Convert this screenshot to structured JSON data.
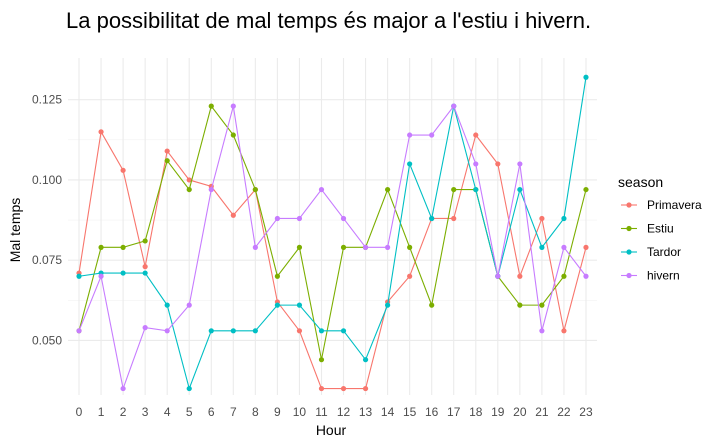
{
  "chart_data": {
    "type": "line",
    "title": "La possibilitat de mal temps és major a l'estiu i hivern.",
    "xlabel": "Hour",
    "ylabel": "Mal temps",
    "x": [
      0,
      1,
      2,
      3,
      4,
      5,
      6,
      7,
      8,
      9,
      10,
      11,
      12,
      13,
      14,
      15,
      16,
      17,
      18,
      19,
      20,
      21,
      22,
      23
    ],
    "xlim": [
      -0.5,
      23.5
    ],
    "ylim": [
      0.033,
      0.138
    ],
    "yticks": [
      0.05,
      0.075,
      0.1,
      0.125
    ],
    "ytick_labels": [
      "0.050",
      "0.075",
      "0.100",
      "0.125"
    ],
    "grid": true,
    "legend": {
      "title": "season",
      "placement": "right"
    },
    "series": [
      {
        "name": "Primavera",
        "color": "#F8766D",
        "values": [
          0.071,
          0.115,
          0.103,
          0.073,
          0.109,
          0.1,
          0.098,
          0.089,
          0.097,
          0.062,
          0.053,
          0.035,
          0.035,
          0.035,
          0.062,
          0.07,
          0.088,
          0.088,
          0.114,
          0.105,
          0.07,
          0.088,
          0.053,
          0.079
        ]
      },
      {
        "name": "Estiu",
        "color": "#7CAE00",
        "values": [
          0.053,
          0.079,
          0.079,
          0.081,
          0.106,
          0.097,
          0.123,
          0.114,
          0.097,
          0.07,
          0.079,
          0.044,
          0.079,
          0.079,
          0.097,
          0.079,
          0.061,
          0.097,
          0.097,
          0.07,
          0.061,
          0.061,
          0.07,
          0.097
        ]
      },
      {
        "name": "Tardor",
        "color": "#00BFC4",
        "values": [
          0.07,
          0.071,
          0.071,
          0.071,
          0.061,
          0.035,
          0.053,
          0.053,
          0.053,
          0.061,
          0.061,
          0.053,
          0.053,
          0.044,
          0.061,
          0.105,
          0.088,
          0.123,
          0.097,
          0.07,
          0.097,
          0.079,
          0.088,
          0.132
        ]
      },
      {
        "name": "hivern",
        "color": "#C77CFF",
        "values": [
          0.053,
          0.07,
          0.035,
          0.054,
          0.053,
          0.061,
          0.097,
          0.123,
          0.079,
          0.088,
          0.088,
          0.097,
          0.088,
          0.079,
          0.079,
          0.114,
          0.114,
          0.123,
          0.105,
          0.07,
          0.105,
          0.053,
          0.079,
          0.07
        ]
      }
    ]
  }
}
